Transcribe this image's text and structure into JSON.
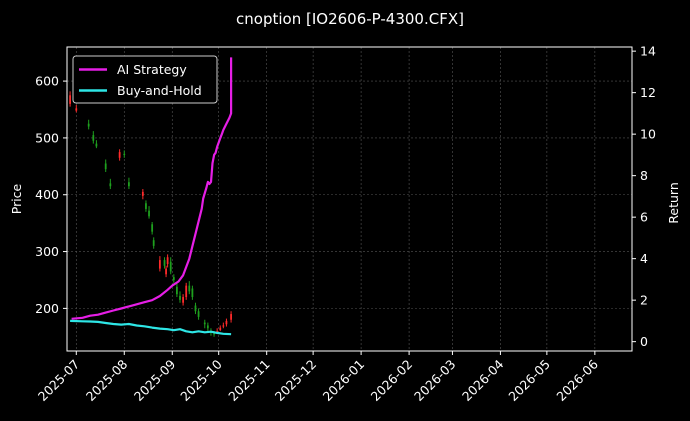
{
  "chart_data": {
    "type": "line",
    "title": "cnoption [IO2606-P-4300.CFX]",
    "xlabel": "",
    "ylabel_left": "Price",
    "ylabel_right": "Return",
    "xlim": [
      "2025-06-25",
      "2026-06-25"
    ],
    "ylim_left": [
      125,
      660
    ],
    "ylim_right": [
      -0.45,
      14.2
    ],
    "x_ticks": [
      "2025-07",
      "2025-08",
      "2025-09",
      "2025-10",
      "2025-11",
      "2025-12",
      "2026-01",
      "2026-02",
      "2026-03",
      "2026-04",
      "2026-05",
      "2026-06"
    ],
    "y_ticks_left": [
      200,
      300,
      400,
      500,
      600
    ],
    "y_ticks_right": [
      0,
      2,
      4,
      6,
      8,
      10,
      12,
      14
    ],
    "grid": true,
    "legend_position": "top-left",
    "colors": {
      "background": "#000000",
      "ai": "#e61ee6",
      "bh": "#2ee6e6",
      "up": "#ff2a2a",
      "down": "#1ea01e",
      "grid": "#555555"
    },
    "series": [
      {
        "name": "AI Strategy",
        "axis": "right",
        "x": [
          "2025-06-28",
          "2025-07-05",
          "2025-07-10",
          "2025-07-15",
          "2025-07-20",
          "2025-07-25",
          "2025-07-30",
          "2025-08-04",
          "2025-08-09",
          "2025-08-14",
          "2025-08-19",
          "2025-08-24",
          "2025-08-29",
          "2025-09-01",
          "2025-09-05",
          "2025-09-08",
          "2025-09-10",
          "2025-09-12",
          "2025-09-14",
          "2025-09-16",
          "2025-09-18",
          "2025-09-20",
          "2025-09-21",
          "2025-09-23",
          "2025-09-24",
          "2025-09-25",
          "2025-09-26",
          "2025-09-27",
          "2025-09-28",
          "2025-09-29",
          "2025-09-30",
          "2025-10-01",
          "2025-10-02",
          "2025-10-03",
          "2025-10-04",
          "2025-10-06",
          "2025-10-08",
          "2025-10-09",
          "2025-10-09"
        ],
        "values": [
          1.1,
          1.15,
          1.25,
          1.3,
          1.4,
          1.5,
          1.6,
          1.7,
          1.8,
          1.9,
          2.0,
          2.2,
          2.5,
          2.7,
          2.9,
          3.2,
          3.6,
          4.0,
          4.6,
          5.2,
          5.8,
          6.4,
          6.9,
          7.4,
          7.7,
          7.6,
          7.7,
          8.6,
          9.0,
          9.1,
          9.4,
          9.6,
          9.8,
          10.0,
          10.2,
          10.5,
          10.8,
          11.0,
          13.7
        ]
      },
      {
        "name": "Buy-and-Hold",
        "axis": "right",
        "x": [
          "2025-06-27",
          "2025-07-05",
          "2025-07-10",
          "2025-07-15",
          "2025-07-20",
          "2025-07-25",
          "2025-07-30",
          "2025-08-04",
          "2025-08-09",
          "2025-08-14",
          "2025-08-19",
          "2025-08-24",
          "2025-08-29",
          "2025-09-02",
          "2025-09-06",
          "2025-09-10",
          "2025-09-14",
          "2025-09-18",
          "2025-09-22",
          "2025-09-26",
          "2025-09-30",
          "2025-10-04",
          "2025-10-09"
        ],
        "values": [
          1.0,
          0.98,
          0.97,
          0.95,
          0.9,
          0.85,
          0.82,
          0.85,
          0.78,
          0.74,
          0.68,
          0.63,
          0.6,
          0.55,
          0.6,
          0.5,
          0.45,
          0.5,
          0.45,
          0.48,
          0.42,
          0.38,
          0.36
        ]
      }
    ],
    "candles": {
      "axis": "left",
      "x": [
        "2025-06-27",
        "2025-07-01",
        "2025-07-09",
        "2025-07-12",
        "2025-07-14",
        "2025-07-20",
        "2025-07-23",
        "2025-07-29",
        "2025-08-01",
        "2025-08-04",
        "2025-08-13",
        "2025-08-15",
        "2025-08-17",
        "2025-08-19",
        "2025-08-20",
        "2025-08-24",
        "2025-08-27",
        "2025-08-28",
        "2025-08-29",
        "2025-08-31",
        "2025-09-02",
        "2025-09-04",
        "2025-09-06",
        "2025-09-08",
        "2025-09-10",
        "2025-09-12",
        "2025-09-14",
        "2025-09-16",
        "2025-09-18",
        "2025-09-22",
        "2025-09-24",
        "2025-09-26",
        "2025-09-28",
        "2025-09-30",
        "2025-10-02",
        "2025-10-04",
        "2025-10-06",
        "2025-10-09"
      ],
      "open": [
        560,
        548,
        525,
        505,
        490,
        455,
        420,
        465,
        472,
        422,
        398,
        385,
        372,
        348,
        320,
        270,
        285,
        260,
        278,
        282,
        255,
        238,
        222,
        210,
        220,
        240,
        235,
        205,
        195,
        175,
        170,
        160,
        156,
        158,
        162,
        168,
        172,
        180
      ],
      "close": [
        575,
        552,
        520,
        495,
        485,
        445,
        415,
        475,
        470,
        415,
        405,
        375,
        362,
        335,
        310,
        285,
        275,
        270,
        290,
        265,
        250,
        225,
        215,
        220,
        240,
        230,
        220,
        195,
        185,
        172,
        165,
        158,
        155,
        160,
        166,
        170,
        178,
        190
      ],
      "high": [
        582,
        558,
        532,
        512,
        496,
        462,
        428,
        480,
        478,
        430,
        410,
        390,
        380,
        352,
        325,
        292,
        290,
        275,
        295,
        290,
        260,
        245,
        230,
        225,
        245,
        248,
        240,
        210,
        200,
        180,
        175,
        165,
        160,
        165,
        170,
        175,
        182,
        195
      ],
      "low": [
        555,
        545,
        515,
        490,
        482,
        440,
        410,
        460,
        465,
        410,
        392,
        370,
        358,
        330,
        305,
        265,
        270,
        255,
        272,
        260,
        245,
        220,
        210,
        205,
        215,
        225,
        215,
        190,
        180,
        165,
        160,
        152,
        150,
        155,
        160,
        165,
        168,
        175
      ]
    }
  }
}
